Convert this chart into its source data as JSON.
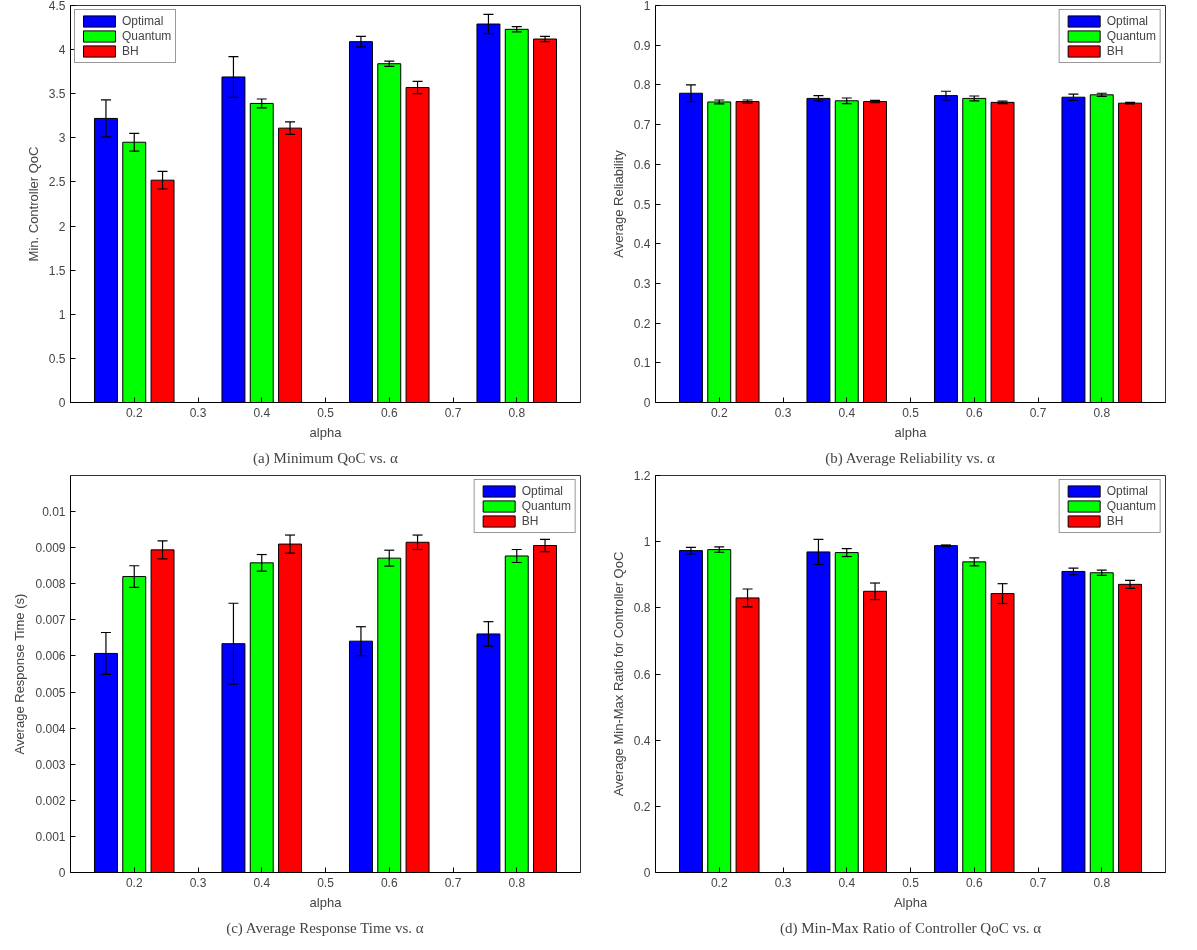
{
  "chart_data": [
    {
      "type": "bar",
      "title": "(a) Minimum QoC vs. α",
      "xlabel": "alpha",
      "ylabel": "Min. Controller QoC",
      "x": [
        0.2,
        0.4,
        0.6,
        0.8
      ],
      "xlim": [
        0.1,
        0.9
      ],
      "xticks": [
        0.2,
        0.3,
        0.4,
        0.5,
        0.6,
        0.7,
        0.8
      ],
      "ylim": [
        0,
        4.5
      ],
      "yticks": [
        0,
        0.5,
        1,
        1.5,
        2,
        2.5,
        3,
        3.5,
        4,
        4.5
      ],
      "legend": "top left",
      "series": [
        {
          "name": "Optimal",
          "color": "#0000ff",
          "values": [
            3.22,
            3.69,
            4.09,
            4.29
          ],
          "errors": [
            0.21,
            0.23,
            0.06,
            0.11
          ]
        },
        {
          "name": "Quantum",
          "color": "#00ff00",
          "values": [
            2.95,
            3.39,
            3.84,
            4.23
          ],
          "errors": [
            0.1,
            0.05,
            0.03,
            0.03
          ]
        },
        {
          "name": "BH",
          "color": "#ff0000",
          "values": [
            2.52,
            3.11,
            3.57,
            4.12
          ],
          "errors": [
            0.1,
            0.07,
            0.07,
            0.03
          ]
        }
      ]
    },
    {
      "type": "bar",
      "title": "(b) Average Reliability vs. α",
      "xlabel": "alpha",
      "ylabel": "Average Reliability",
      "x": [
        0.2,
        0.4,
        0.6,
        0.8
      ],
      "xlim": [
        0.1,
        0.9
      ],
      "xticks": [
        0.2,
        0.3,
        0.4,
        0.5,
        0.6,
        0.7,
        0.8
      ],
      "ylim": [
        0,
        1
      ],
      "yticks": [
        0,
        0.1,
        0.2,
        0.3,
        0.4,
        0.5,
        0.6,
        0.7,
        0.8,
        0.9,
        1
      ],
      "legend": "top right",
      "series": [
        {
          "name": "Optimal",
          "color": "#0000ff",
          "values": [
            0.779,
            0.766,
            0.773,
            0.769
          ],
          "errors": [
            0.021,
            0.007,
            0.011,
            0.008
          ]
        },
        {
          "name": "Quantum",
          "color": "#00ff00",
          "values": [
            0.757,
            0.76,
            0.766,
            0.775
          ],
          "errors": [
            0.005,
            0.007,
            0.006,
            0.004
          ]
        },
        {
          "name": "BH",
          "color": "#ff0000",
          "values": [
            0.758,
            0.758,
            0.756,
            0.754
          ],
          "errors": [
            0.004,
            0.003,
            0.003,
            0.002
          ]
        }
      ]
    },
    {
      "type": "bar",
      "title": "(c) Average Response Time vs. α",
      "xlabel": "alpha",
      "ylabel": "Average Response Time (s)",
      "x": [
        0.2,
        0.4,
        0.6,
        0.8
      ],
      "xlim": [
        0.1,
        0.9
      ],
      "xticks": [
        0.2,
        0.3,
        0.4,
        0.5,
        0.6,
        0.7,
        0.8
      ],
      "ylim": [
        0,
        0.011
      ],
      "yticks": [
        0,
        0.001,
        0.002,
        0.003,
        0.004,
        0.005,
        0.006,
        0.007,
        0.008,
        0.009,
        0.01
      ],
      "legend": "top right",
      "series": [
        {
          "name": "Optimal",
          "color": "#0000ff",
          "values": [
            0.00607,
            0.00634,
            0.00641,
            0.00661
          ],
          "errors": [
            0.00058,
            0.00112,
            0.0004,
            0.00034
          ]
        },
        {
          "name": "Quantum",
          "color": "#00ff00",
          "values": [
            0.0082,
            0.00858,
            0.00871,
            0.00877
          ],
          "errors": [
            0.0003,
            0.00023,
            0.00022,
            0.00018
          ]
        },
        {
          "name": "BH",
          "color": "#ff0000",
          "values": [
            0.00894,
            0.0091,
            0.00915,
            0.00906
          ],
          "errors": [
            0.00025,
            0.00025,
            0.0002,
            0.00017
          ]
        }
      ]
    },
    {
      "type": "bar",
      "title": "(d) Min-Max Ratio of Controller QoC vs. α",
      "xlabel": "Alpha",
      "ylabel": "Average Min-Max Ratio for Controller QoC",
      "x": [
        0.2,
        0.4,
        0.6,
        0.8
      ],
      "xlim": [
        0.1,
        0.9
      ],
      "xticks": [
        0.2,
        0.3,
        0.4,
        0.5,
        0.6,
        0.7,
        0.8
      ],
      "ylim": [
        0,
        1.2
      ],
      "yticks": [
        0,
        0.2,
        0.4,
        0.6,
        0.8,
        1,
        1.2
      ],
      "legend": "top right",
      "series": [
        {
          "name": "Optimal",
          "color": "#0000ff",
          "values": [
            0.973,
            0.969,
            0.988,
            0.91
          ],
          "errors": [
            0.01,
            0.038,
            0.002,
            0.01
          ]
        },
        {
          "name": "Quantum",
          "color": "#00ff00",
          "values": [
            0.976,
            0.967,
            0.939,
            0.906
          ],
          "errors": [
            0.008,
            0.012,
            0.012,
            0.008
          ]
        },
        {
          "name": "BH",
          "color": "#ff0000",
          "values": [
            0.83,
            0.85,
            0.843,
            0.871
          ],
          "errors": [
            0.027,
            0.025,
            0.03,
            0.012
          ]
        }
      ]
    }
  ]
}
